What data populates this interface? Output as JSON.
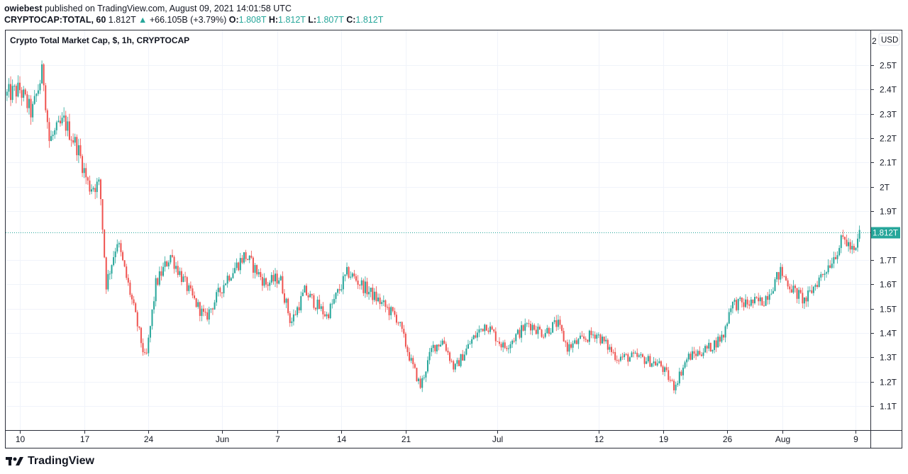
{
  "header": {
    "author": "owiebest",
    "published_text": "published on TradingView.com, August 09, 2021 14:01:58 UTC",
    "symbol": "CRYPTOCAP:TOTAL, 60",
    "last": "1.812T",
    "change": "+66.105B (+3.79%)",
    "o_label": "O:",
    "o": "1.808T",
    "h_label": "H:",
    "h": "1.812T",
    "l_label": "L:",
    "l": "1.807T",
    "c_label": "C:",
    "c": "1.812T"
  },
  "currency_badge": "USD",
  "footer": {
    "brand": "TradingView"
  },
  "colors": {
    "up": "#26a69a",
    "down": "#ef5350",
    "grid": "#f0f3fa"
  },
  "chart_data": {
    "type": "candlestick",
    "title": "Crypto Total Market Cap, $, 1h, CRYPTOCAP",
    "x_unit": "days since May 10, 2021",
    "y_unit": "USD trillions",
    "ylim": [
      1.0,
      2.6
    ],
    "y_ticks": [
      {
        "v": 2.5,
        "label": "2.5T"
      },
      {
        "v": 2.4,
        "label": "2.4T"
      },
      {
        "v": 2.3,
        "label": "2.3T"
      },
      {
        "v": 2.2,
        "label": "2.2T"
      },
      {
        "v": 2.1,
        "label": "2.1T"
      },
      {
        "v": 2.0,
        "label": "2T"
      },
      {
        "v": 1.9,
        "label": "1.9T"
      },
      {
        "v": 1.7,
        "label": "1.7T"
      },
      {
        "v": 1.6,
        "label": "1.6T"
      },
      {
        "v": 1.5,
        "label": "1.5T"
      },
      {
        "v": 1.4,
        "label": "1.4T"
      },
      {
        "v": 1.3,
        "label": "1.3T"
      },
      {
        "v": 1.2,
        "label": "1.2T"
      },
      {
        "v": 1.1,
        "label": "1.1T"
      }
    ],
    "top_partial_tick": "2",
    "x_ticks": [
      {
        "d": 0,
        "label": "10"
      },
      {
        "d": 7,
        "label": "17"
      },
      {
        "d": 14,
        "label": "24"
      },
      {
        "d": 22,
        "label": "Jun"
      },
      {
        "d": 28,
        "label": "7"
      },
      {
        "d": 35,
        "label": "14"
      },
      {
        "d": 42,
        "label": "21"
      },
      {
        "d": 52,
        "label": "Jul"
      },
      {
        "d": 63,
        "label": "12"
      },
      {
        "d": 70,
        "label": "19"
      },
      {
        "d": 77,
        "label": "26"
      },
      {
        "d": 83,
        "label": "Aug"
      },
      {
        "d": 91,
        "label": "9"
      }
    ],
    "last_price": 1.812,
    "last_price_label": "1.812T",
    "path": [
      [
        -1.6,
        2.375
      ],
      [
        0,
        2.4
      ],
      [
        1.3,
        2.3
      ],
      [
        2.5,
        2.48
      ],
      [
        3.2,
        2.19
      ],
      [
        4.8,
        2.27
      ],
      [
        6.3,
        2.16
      ],
      [
        7.5,
        2.0
      ],
      [
        8.7,
        2.01
      ],
      [
        9.4,
        1.6
      ],
      [
        10.6,
        1.78
      ],
      [
        12.1,
        1.55
      ],
      [
        13.7,
        1.28
      ],
      [
        14.8,
        1.6
      ],
      [
        16.4,
        1.72
      ],
      [
        18.7,
        1.55
      ],
      [
        20.2,
        1.46
      ],
      [
        22.6,
        1.63
      ],
      [
        24.5,
        1.72
      ],
      [
        26.8,
        1.6
      ],
      [
        28.3,
        1.63
      ],
      [
        29.5,
        1.44
      ],
      [
        31.0,
        1.57
      ],
      [
        33.4,
        1.47
      ],
      [
        35.7,
        1.65
      ],
      [
        38.0,
        1.57
      ],
      [
        41.1,
        1.46
      ],
      [
        42.6,
        1.28
      ],
      [
        43.6,
        1.18
      ],
      [
        44.9,
        1.34
      ],
      [
        46.1,
        1.37
      ],
      [
        47.3,
        1.25
      ],
      [
        49.2,
        1.37
      ],
      [
        50.7,
        1.44
      ],
      [
        52.7,
        1.34
      ],
      [
        55.4,
        1.44
      ],
      [
        56.9,
        1.4
      ],
      [
        58.5,
        1.44
      ],
      [
        59.6,
        1.34
      ],
      [
        62.7,
        1.4
      ],
      [
        65.0,
        1.3
      ],
      [
        67.3,
        1.3
      ],
      [
        69.7,
        1.27
      ],
      [
        71.2,
        1.18
      ],
      [
        72.7,
        1.3
      ],
      [
        75.1,
        1.34
      ],
      [
        76.6,
        1.39
      ],
      [
        77.4,
        1.52
      ],
      [
        78.9,
        1.52
      ],
      [
        80.9,
        1.53
      ],
      [
        82.8,
        1.65
      ],
      [
        84.3,
        1.57
      ],
      [
        85.5,
        1.53
      ],
      [
        86.6,
        1.6
      ],
      [
        88.2,
        1.69
      ],
      [
        89.7,
        1.79
      ],
      [
        90.9,
        1.72
      ],
      [
        91.4,
        1.812
      ]
    ]
  }
}
